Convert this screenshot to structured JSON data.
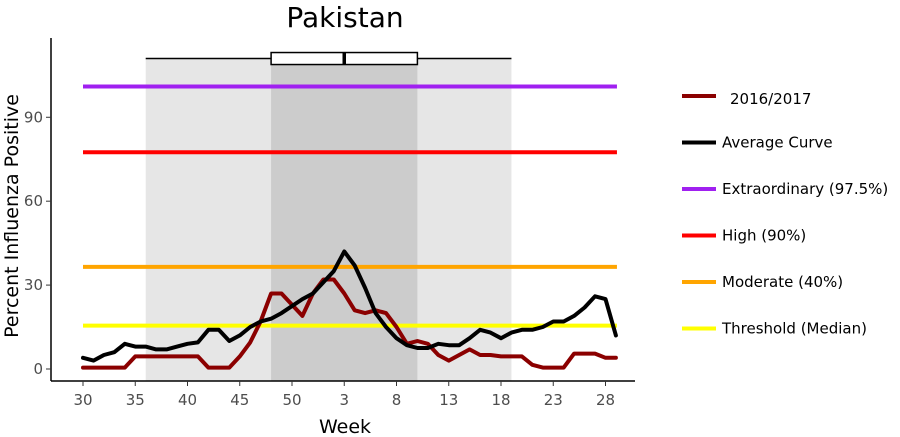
{
  "chart_data": {
    "type": "line",
    "title": "Pakistan",
    "xlabel": "Week",
    "ylabel": "Percent Influenza Positive",
    "x_tick_labels": [
      "30",
      "35",
      "40",
      "45",
      "50",
      "3",
      "8",
      "13",
      "18",
      "23",
      "28"
    ],
    "y_ticks": [
      0,
      30,
      60,
      90
    ],
    "ylim": [
      -3,
      118
    ],
    "grid": false,
    "legend_position": "right",
    "x_weeks": [
      30,
      31,
      32,
      33,
      34,
      35,
      36,
      37,
      38,
      39,
      40,
      41,
      42,
      43,
      44,
      45,
      46,
      47,
      48,
      49,
      50,
      51,
      52,
      1,
      2,
      3,
      4,
      5,
      6,
      7,
      8,
      9,
      10,
      11,
      12,
      13,
      14,
      15,
      16,
      17,
      18,
      19,
      20,
      21,
      22,
      23,
      24,
      25,
      26,
      27,
      28,
      29
    ],
    "season_shading": {
      "outer_weeks": [
        "36",
        "19"
      ],
      "inner_weeks": [
        "48",
        "10"
      ]
    },
    "boxplot": {
      "whisker_weeks": [
        "36",
        "19"
      ],
      "box_weeks": [
        "48",
        "10"
      ],
      "median_week": "3",
      "y": 111
    },
    "thresholds": [
      {
        "name": "Extraordinary (97.5%)",
        "value": 101,
        "color": "#A020F0"
      },
      {
        "name": "High (90%)",
        "value": 77.5,
        "color": "#FF0000"
      },
      {
        "name": "Moderate (40%)",
        "value": 36.5,
        "color": "#FFA500"
      },
      {
        "name": "Threshold (Median)",
        "value": 15.5,
        "color": "#FFFF00"
      }
    ],
    "series": [
      {
        "name": "2016/2017",
        "color": "#8B0000",
        "values": [
          0.5,
          0.5,
          0.5,
          0.5,
          0.5,
          4.5,
          4.5,
          4.5,
          4.5,
          4.5,
          4.5,
          4.5,
          0.5,
          0.5,
          0.5,
          4.5,
          9.5,
          17,
          27,
          27,
          23,
          19,
          27,
          32,
          32,
          27,
          21,
          20,
          21,
          20,
          15,
          9,
          10,
          9,
          5,
          3,
          5,
          7,
          5,
          5,
          4.5,
          4.5,
          4.5,
          1.5,
          0.5,
          0.5,
          0.5,
          5.5,
          5.5,
          5.5,
          4,
          4
        ]
      },
      {
        "name": "Average Curve",
        "color": "#000000",
        "values": [
          4,
          3,
          5,
          6,
          9,
          8,
          8,
          7,
          7,
          8,
          9,
          9.5,
          14,
          14,
          10,
          12,
          15,
          17,
          18,
          20,
          22.5,
          25,
          27,
          31,
          35,
          42,
          37,
          29,
          20,
          15,
          11,
          8.5,
          7.5,
          7.5,
          9,
          8.5,
          8.5,
          11,
          14,
          13,
          11,
          13,
          14,
          14,
          15,
          17,
          17,
          19,
          22,
          26,
          25,
          12
        ]
      }
    ]
  }
}
